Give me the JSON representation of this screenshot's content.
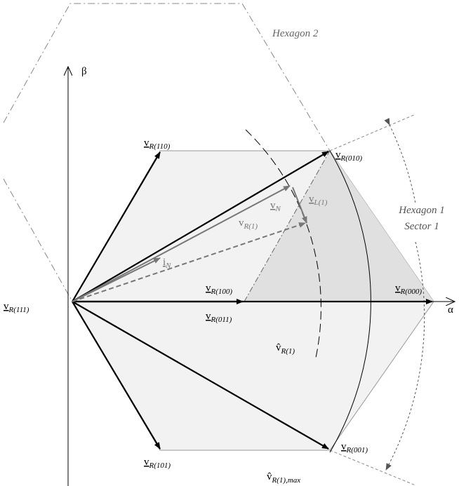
{
  "labels": {
    "hexagon2": "Hexagon 2",
    "beta": "β",
    "alpha": "α",
    "hexagon1": "Hexagon 1",
    "sector1": "Sector 1",
    "v110": {
      "main": "v",
      "sub": "R(110)"
    },
    "v010": {
      "main": "v",
      "sub": "R(010)"
    },
    "vL1": {
      "main": "v",
      "sub": "L(1)"
    },
    "vN": {
      "main": "v",
      "sub": "N"
    },
    "vR1": {
      "main": "v",
      "sub": "R(1)"
    },
    "iN": {
      "main": "i",
      "sub": "N"
    },
    "v100": {
      "main": "v",
      "sub": "R(100)"
    },
    "v000": {
      "main": "v",
      "sub": "R(000)"
    },
    "v111": {
      "main": "v",
      "sub": "R(111)"
    },
    "v011": {
      "main": "v",
      "sub": "R(011)"
    },
    "vhatR1": {
      "main": "v̂",
      "sub": "R(1)"
    },
    "v101": {
      "main": "v",
      "sub": "R(101)"
    },
    "v001": {
      "main": "v",
      "sub": "R(001)"
    },
    "vhatmax": {
      "main": "v̂",
      "sub": "R(1),max"
    }
  }
}
